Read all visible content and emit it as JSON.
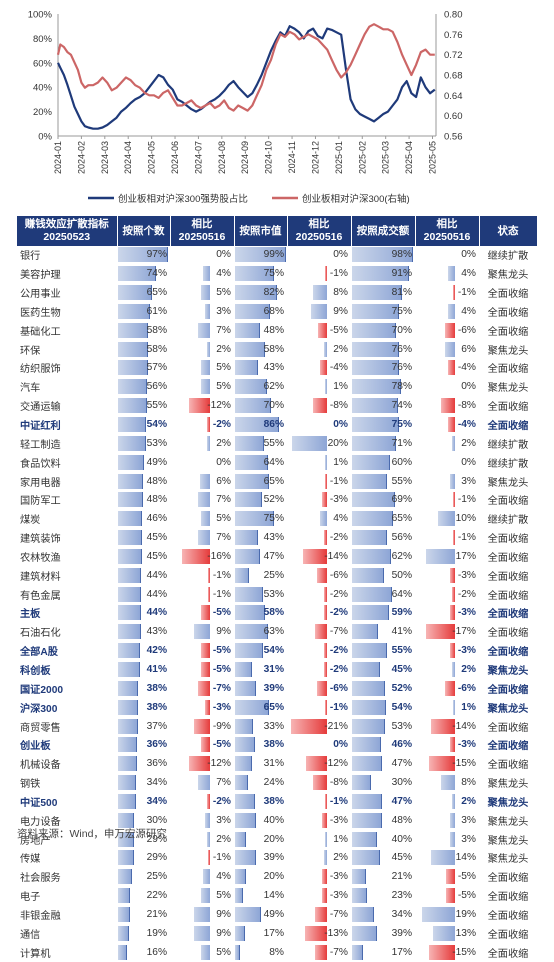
{
  "chart_data": {
    "type": "line",
    "x_ticks": [
      "2024-01",
      "2024-02",
      "2024-03",
      "2024-04",
      "2024-05",
      "2024-06",
      "2024-07",
      "2024-08",
      "2024-09",
      "2024-10",
      "2024-11",
      "2024-12",
      "2025-01",
      "2025-02",
      "2025-03",
      "2025-04",
      "2025-05"
    ],
    "y_left_ticks": [
      "100%",
      "80%",
      "60%",
      "40%",
      "20%",
      "0%"
    ],
    "y_right_ticks": [
      "0.80",
      "0.76",
      "0.72",
      "0.68",
      "0.64",
      "0.60",
      "0.56"
    ],
    "ylim_left": [
      0,
      100
    ],
    "ylim_right": [
      0.56,
      0.8
    ],
    "series": [
      {
        "name": "创业板相对沪深300强势股占比",
        "axis": "left",
        "color": "#1f3a7a",
        "x": [
          0,
          0.1,
          0.25,
          0.4,
          0.55,
          0.7,
          0.85,
          1.0,
          1.15,
          1.3,
          1.5,
          1.7,
          1.9,
          2.1,
          2.3,
          2.5,
          2.7,
          2.9,
          3.1,
          3.3,
          3.5,
          3.7,
          3.9,
          4.1,
          4.3,
          4.5,
          4.7,
          4.9,
          5.1,
          5.3,
          5.5,
          5.7,
          5.9,
          6.1,
          6.3,
          6.5,
          6.7,
          6.9,
          7.1,
          7.3,
          7.5,
          7.7,
          7.9,
          8.1,
          8.3,
          8.5,
          8.7,
          8.9,
          9.1,
          9.3,
          9.5,
          9.7,
          9.9,
          10.1,
          10.3,
          10.5,
          10.7,
          10.9,
          11.1,
          11.3,
          11.5,
          11.7,
          11.9,
          12.1,
          12.3,
          12.5,
          12.7,
          12.9,
          13.1,
          13.3,
          13.5,
          13.7,
          13.9,
          14.1,
          14.3,
          14.5,
          14.7,
          14.9,
          15.1,
          15.3,
          15.5,
          15.7,
          15.9,
          16.1
        ],
        "y": [
          60,
          56,
          50,
          42,
          33,
          24,
          18,
          12,
          8,
          7,
          6,
          6,
          7,
          9,
          12,
          15,
          20,
          23,
          27,
          30,
          32,
          35,
          40,
          45,
          50,
          48,
          42,
          38,
          30,
          28,
          25,
          22,
          20,
          22,
          25,
          28,
          30,
          33,
          37,
          42,
          45,
          40,
          36,
          32,
          35,
          42,
          50,
          60,
          70,
          78,
          85,
          82,
          90,
          88,
          85,
          80,
          86,
          88,
          82,
          80,
          88,
          87,
          85,
          83,
          55,
          30,
          22,
          18,
          16,
          14,
          12,
          15,
          18,
          20,
          25,
          30,
          40,
          45,
          35,
          32,
          48,
          40,
          35,
          38
        ]
      },
      {
        "name": "创业板相对沪深300(右轴)",
        "axis": "right",
        "color": "#cc6666",
        "x": [
          0,
          0.1,
          0.25,
          0.4,
          0.55,
          0.7,
          0.85,
          1.0,
          1.15,
          1.3,
          1.5,
          1.7,
          1.9,
          2.1,
          2.3,
          2.5,
          2.7,
          2.9,
          3.1,
          3.3,
          3.5,
          3.7,
          3.9,
          4.1,
          4.3,
          4.5,
          4.7,
          4.9,
          5.1,
          5.3,
          5.5,
          5.7,
          5.9,
          6.1,
          6.3,
          6.5,
          6.7,
          6.9,
          7.1,
          7.3,
          7.5,
          7.7,
          7.9,
          8.1,
          8.3,
          8.5,
          8.7,
          8.9,
          9.1,
          9.3,
          9.5,
          9.7,
          9.9,
          10.1,
          10.3,
          10.5,
          10.7,
          10.9,
          11.1,
          11.3,
          11.5,
          11.7,
          11.9,
          12.1,
          12.3,
          12.5,
          12.7,
          12.9,
          13.1,
          13.3,
          13.5,
          13.7,
          13.9,
          14.1,
          14.3,
          14.5,
          14.7,
          14.9,
          15.1,
          15.3,
          15.5,
          15.7,
          15.9,
          16.1
        ],
        "y": [
          0.72,
          0.74,
          0.735,
          0.725,
          0.72,
          0.705,
          0.69,
          0.665,
          0.655,
          0.66,
          0.66,
          0.665,
          0.675,
          0.665,
          0.65,
          0.655,
          0.665,
          0.675,
          0.67,
          0.66,
          0.655,
          0.645,
          0.64,
          0.64,
          0.635,
          0.645,
          0.65,
          0.635,
          0.62,
          0.62,
          0.625,
          0.63,
          0.62,
          0.615,
          0.62,
          0.625,
          0.615,
          0.62,
          0.63,
          0.615,
          0.61,
          0.62,
          0.615,
          0.61,
          0.62,
          0.64,
          0.66,
          0.69,
          0.71,
          0.74,
          0.76,
          0.755,
          0.765,
          0.76,
          0.75,
          0.755,
          0.76,
          0.755,
          0.75,
          0.74,
          0.73,
          0.71,
          0.69,
          0.675,
          0.685,
          0.7,
          0.72,
          0.74,
          0.76,
          0.775,
          0.78,
          0.775,
          0.77,
          0.77,
          0.765,
          0.745,
          0.72,
          0.7,
          0.68,
          0.7,
          0.725,
          0.73,
          0.72,
          0.72
        ]
      }
    ],
    "legend_placement": "bottom"
  },
  "table": {
    "headers": [
      "赚钱效应扩散指标\n20250523",
      "按照个数",
      "相比\n20250516",
      "按照市值",
      "相比\n20250516",
      "按照成交额",
      "相比\n20250516",
      "状态"
    ],
    "rows": [
      {
        "name": "银行",
        "count": 97,
        "count_chg": 0,
        "mcap": 99,
        "mcap_chg": 0,
        "turnover": 98,
        "turnover_chg": 0,
        "status": "继续扩散",
        "bold": false
      },
      {
        "name": "美容护理",
        "count": 74,
        "count_chg": 4,
        "mcap": 75,
        "mcap_chg": -1,
        "turnover": 91,
        "turnover_chg": 4,
        "status": "聚焦龙头",
        "bold": false
      },
      {
        "name": "公用事业",
        "count": 65,
        "count_chg": 5,
        "mcap": 82,
        "mcap_chg": 8,
        "turnover": 81,
        "turnover_chg": -1,
        "status": "全面收缩",
        "bold": false
      },
      {
        "name": "医药生物",
        "count": 61,
        "count_chg": 3,
        "mcap": 68,
        "mcap_chg": 9,
        "turnover": 75,
        "turnover_chg": 4,
        "status": "全面收缩",
        "bold": false
      },
      {
        "name": "基础化工",
        "count": 58,
        "count_chg": 7,
        "mcap": 48,
        "mcap_chg": -5,
        "turnover": 70,
        "turnover_chg": -6,
        "status": "全面收缩",
        "bold": false
      },
      {
        "name": "环保",
        "count": 58,
        "count_chg": 2,
        "mcap": 58,
        "mcap_chg": 2,
        "turnover": 76,
        "turnover_chg": 6,
        "status": "聚焦龙头",
        "bold": false
      },
      {
        "name": "纺织服饰",
        "count": 57,
        "count_chg": 5,
        "mcap": 43,
        "mcap_chg": -4,
        "turnover": 76,
        "turnover_chg": -4,
        "status": "全面收缩",
        "bold": false
      },
      {
        "name": "汽车",
        "count": 56,
        "count_chg": 5,
        "mcap": 62,
        "mcap_chg": 1,
        "turnover": 78,
        "turnover_chg": 0,
        "status": "聚焦龙头",
        "bold": false
      },
      {
        "name": "交通运输",
        "count": 55,
        "count_chg": -12,
        "mcap": 70,
        "mcap_chg": -8,
        "turnover": 74,
        "turnover_chg": -8,
        "status": "全面收缩",
        "bold": false
      },
      {
        "name": "中证红利",
        "count": 54,
        "count_chg": -2,
        "mcap": 86,
        "mcap_chg": 0,
        "turnover": 75,
        "turnover_chg": -4,
        "status": "全面收缩",
        "bold": true
      },
      {
        "name": "轻工制造",
        "count": 53,
        "count_chg": 2,
        "mcap": 55,
        "mcap_chg": 20,
        "turnover": 71,
        "turnover_chg": 2,
        "status": "继续扩散",
        "bold": false
      },
      {
        "name": "食品饮料",
        "count": 49,
        "count_chg": 0,
        "mcap": 64,
        "mcap_chg": 1,
        "turnover": 60,
        "turnover_chg": 0,
        "status": "继续扩散",
        "bold": false
      },
      {
        "name": "家用电器",
        "count": 48,
        "count_chg": 6,
        "mcap": 65,
        "mcap_chg": -1,
        "turnover": 55,
        "turnover_chg": 3,
        "status": "聚焦龙头",
        "bold": false
      },
      {
        "name": "国防军工",
        "count": 48,
        "count_chg": 7,
        "mcap": 52,
        "mcap_chg": -3,
        "turnover": 69,
        "turnover_chg": -1,
        "status": "全面收缩",
        "bold": false
      },
      {
        "name": "煤炭",
        "count": 46,
        "count_chg": 5,
        "mcap": 75,
        "mcap_chg": 4,
        "turnover": 65,
        "turnover_chg": 10,
        "status": "继续扩散",
        "bold": false
      },
      {
        "name": "建筑装饰",
        "count": 45,
        "count_chg": 7,
        "mcap": 43,
        "mcap_chg": -2,
        "turnover": 56,
        "turnover_chg": -1,
        "status": "全面收缩",
        "bold": false
      },
      {
        "name": "农林牧渔",
        "count": 45,
        "count_chg": -16,
        "mcap": 47,
        "mcap_chg": -14,
        "turnover": 62,
        "turnover_chg": 17,
        "status": "全面收缩",
        "bold": false
      },
      {
        "name": "建筑材料",
        "count": 44,
        "count_chg": -1,
        "mcap": 25,
        "mcap_chg": -6,
        "turnover": 50,
        "turnover_chg": -3,
        "status": "全面收缩",
        "bold": false
      },
      {
        "name": "有色金属",
        "count": 44,
        "count_chg": -1,
        "mcap": 53,
        "mcap_chg": -2,
        "turnover": 64,
        "turnover_chg": -2,
        "status": "全面收缩",
        "bold": false
      },
      {
        "name": "主板",
        "count": 44,
        "count_chg": -5,
        "mcap": 58,
        "mcap_chg": -2,
        "turnover": 59,
        "turnover_chg": -3,
        "status": "全面收缩",
        "bold": true
      },
      {
        "name": "石油石化",
        "count": 43,
        "count_chg": 9,
        "mcap": 63,
        "mcap_chg": -7,
        "turnover": 41,
        "turnover_chg": -17,
        "status": "全面收缩",
        "bold": false
      },
      {
        "name": "全部A股",
        "count": 42,
        "count_chg": -5,
        "mcap": 54,
        "mcap_chg": -2,
        "turnover": 55,
        "turnover_chg": -3,
        "status": "全面收缩",
        "bold": true
      },
      {
        "name": "科创板",
        "count": 41,
        "count_chg": -5,
        "mcap": 31,
        "mcap_chg": -2,
        "turnover": 45,
        "turnover_chg": 2,
        "status": "聚焦龙头",
        "bold": true
      },
      {
        "name": "国证2000",
        "count": 38,
        "count_chg": -7,
        "mcap": 39,
        "mcap_chg": -6,
        "turnover": 52,
        "turnover_chg": -6,
        "status": "全面收缩",
        "bold": true
      },
      {
        "name": "沪深300",
        "count": 38,
        "count_chg": -3,
        "mcap": 65,
        "mcap_chg": -1,
        "turnover": 54,
        "turnover_chg": 1,
        "status": "聚焦龙头",
        "bold": true
      },
      {
        "name": "商贸零售",
        "count": 37,
        "count_chg": -9,
        "mcap": 33,
        "mcap_chg": -21,
        "turnover": 53,
        "turnover_chg": -14,
        "status": "全面收缩",
        "bold": false
      },
      {
        "name": "创业板",
        "count": 36,
        "count_chg": -5,
        "mcap": 38,
        "mcap_chg": 0,
        "turnover": 46,
        "turnover_chg": -3,
        "status": "全面收缩",
        "bold": true
      },
      {
        "name": "机械设备",
        "count": 36,
        "count_chg": -12,
        "mcap": 31,
        "mcap_chg": -12,
        "turnover": 47,
        "turnover_chg": -15,
        "status": "全面收缩",
        "bold": false
      },
      {
        "name": "钢铁",
        "count": 34,
        "count_chg": 7,
        "mcap": 24,
        "mcap_chg": -8,
        "turnover": 30,
        "turnover_chg": 8,
        "status": "聚焦龙头",
        "bold": false
      },
      {
        "name": "中证500",
        "count": 34,
        "count_chg": -2,
        "mcap": 38,
        "mcap_chg": -1,
        "turnover": 47,
        "turnover_chg": 2,
        "status": "聚焦龙头",
        "bold": true
      },
      {
        "name": "电力设备",
        "count": 30,
        "count_chg": 3,
        "mcap": 40,
        "mcap_chg": -3,
        "turnover": 48,
        "turnover_chg": 3,
        "status": "聚焦龙头",
        "bold": false
      },
      {
        "name": "房地产",
        "count": 29,
        "count_chg": 2,
        "mcap": 20,
        "mcap_chg": 1,
        "turnover": 40,
        "turnover_chg": 3,
        "status": "聚焦龙头",
        "bold": false
      },
      {
        "name": "传媒",
        "count": 29,
        "count_chg": -1,
        "mcap": 39,
        "mcap_chg": 2,
        "turnover": 45,
        "turnover_chg": 14,
        "status": "聚焦龙头",
        "bold": false
      },
      {
        "name": "社会服务",
        "count": 25,
        "count_chg": 4,
        "mcap": 20,
        "mcap_chg": -3,
        "turnover": 21,
        "turnover_chg": -5,
        "status": "全面收缩",
        "bold": false
      },
      {
        "name": "电子",
        "count": 22,
        "count_chg": 5,
        "mcap": 14,
        "mcap_chg": -3,
        "turnover": 23,
        "turnover_chg": -5,
        "status": "全面收缩",
        "bold": false
      },
      {
        "name": "非银金融",
        "count": 21,
        "count_chg": 9,
        "mcap": 49,
        "mcap_chg": -7,
        "turnover": 34,
        "turnover_chg": 19,
        "status": "全面收缩",
        "bold": false
      },
      {
        "name": "通信",
        "count": 19,
        "count_chg": 9,
        "mcap": 17,
        "mcap_chg": -13,
        "turnover": 39,
        "turnover_chg": 13,
        "status": "全面收缩",
        "bold": false
      },
      {
        "name": "计算机",
        "count": 16,
        "count_chg": 5,
        "mcap": 8,
        "mcap_chg": -7,
        "turnover": 17,
        "turnover_chg": -15,
        "status": "全面收缩",
        "bold": false
      }
    ]
  },
  "footer": "资料来源：Wind，申万宏源研究"
}
